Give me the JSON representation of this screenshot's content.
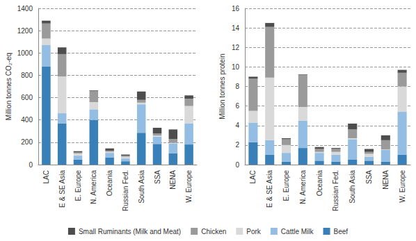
{
  "chart_data": [
    {
      "type": "bar",
      "stacked": true,
      "grid": true,
      "legend": "bottom",
      "y_label": "Million tonnes CO₂-eq",
      "categories": [
        "LAC",
        "E & SE Asia",
        "E. Europe",
        "N. America",
        "Oceania",
        "Russian Fed.",
        "South Asia",
        "SSA",
        "NENA",
        "W. Europe"
      ],
      "ylim": [
        0,
        1400
      ],
      "yticks": [
        0,
        200,
        400,
        600,
        800,
        1000,
        1200,
        1400
      ],
      "series": [
        {
          "name": "Beef",
          "color": "#3a80b8",
          "values": [
            880,
            370,
            45,
            400,
            65,
            30,
            285,
            185,
            100,
            180
          ]
        },
        {
          "name": "Cattle Milk",
          "color": "#93bde2",
          "values": [
            190,
            90,
            35,
            95,
            40,
            25,
            255,
            65,
            90,
            190
          ]
        },
        {
          "name": "Pork",
          "color": "#d9d9d9",
          "values": [
            60,
            330,
            20,
            65,
            10,
            15,
            15,
            10,
            5,
            155
          ]
        },
        {
          "name": "Chicken",
          "color": "#9a9a9a",
          "values": [
            135,
            200,
            10,
            100,
            10,
            10,
            25,
            20,
            35,
            65
          ]
        },
        {
          "name": "Small Ruminants (Milk and Meat)",
          "color": "#4d4d4d",
          "values": [
            25,
            60,
            10,
            5,
            20,
            10,
            75,
            50,
            85,
            30
          ]
        }
      ]
    },
    {
      "type": "bar",
      "stacked": true,
      "grid": true,
      "y_label": "Million tonnes protein",
      "categories": [
        "LAC",
        "E & SE Asia",
        "E. Europe",
        "N. America",
        "Oceania",
        "Russian Fed.",
        "South Asia",
        "SSA",
        "NENA",
        "W. Europe"
      ],
      "ylim": [
        0,
        16
      ],
      "yticks": [
        0,
        2,
        4,
        6,
        8,
        10,
        12,
        14,
        16
      ],
      "series": [
        {
          "name": "Beef",
          "color": "#3a80b8",
          "values": [
            2.3,
            1.0,
            0.3,
            1.7,
            0.4,
            0.3,
            0.5,
            0.4,
            0.3,
            1.0
          ]
        },
        {
          "name": "Cattle Milk",
          "color": "#93bde2",
          "values": [
            2.0,
            1.5,
            0.9,
            2.8,
            0.8,
            0.7,
            2.1,
            0.4,
            1.2,
            4.4
          ]
        },
        {
          "name": "Pork",
          "color": "#d9d9d9",
          "values": [
            1.2,
            6.4,
            0.8,
            1.4,
            0.1,
            0.3,
            0.1,
            0.3,
            0.05,
            2.6
          ]
        },
        {
          "name": "Chicken",
          "color": "#9a9a9a",
          "values": [
            3.3,
            5.2,
            0.6,
            3.3,
            0.3,
            0.3,
            0.9,
            0.2,
            0.95,
            1.4
          ]
        },
        {
          "name": "Small Ruminants (Milk and Meat)",
          "color": "#4d4d4d",
          "values": [
            0.2,
            0.4,
            0.1,
            0.05,
            0.2,
            0.1,
            0.6,
            0.3,
            0.5,
            0.3
          ]
        }
      ]
    }
  ]
}
